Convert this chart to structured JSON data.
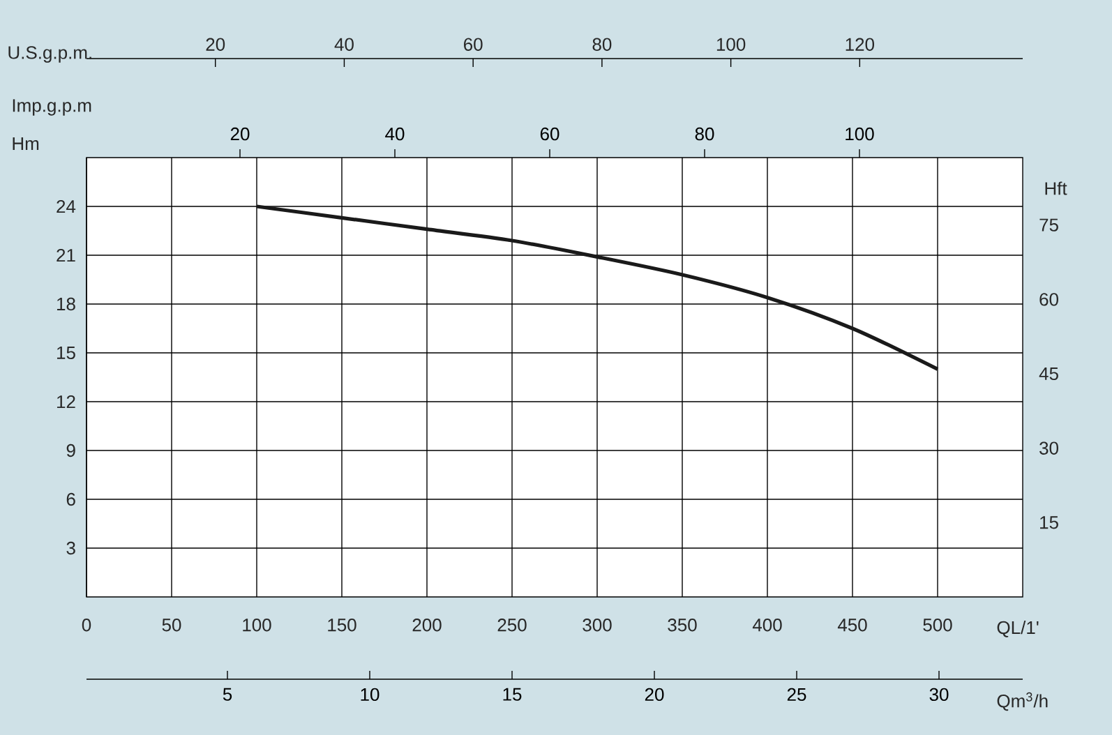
{
  "chart_data": {
    "type": "line",
    "xlabel": "QL/1'",
    "ylabel": "Hm",
    "y2label": "Hft",
    "x2label": "U.S.g.p.m.",
    "annotations": [
      "Imp.g.p.m",
      "20",
      "40",
      "60",
      "80",
      "100",
      "Qm$^{3}$/h",
      "5",
      "10",
      "15",
      "20",
      "25",
      "30"
    ],
    "x": [
      100,
      150,
      200,
      250,
      300,
      350,
      400,
      450,
      500
    ],
    "series": [
      {
        "color": "#1a1a1a",
        "values": [
          24.0,
          23.3,
          22.6,
          21.9,
          20.9,
          19.8,
          18.4,
          16.5,
          14.0
        ]
      }
    ],
    "xlim": [
      0,
      550
    ],
    "xticks": [
      0,
      50,
      100,
      150,
      200,
      250,
      300,
      350,
      400,
      450,
      500
    ],
    "ylim": [
      0,
      27
    ],
    "yticks": [
      3,
      6,
      9,
      12,
      15,
      18,
      21,
      24
    ],
    "y2lim": [
      0,
      88.6
    ],
    "y2ticks": [
      15,
      30,
      45,
      60,
      75
    ],
    "x2lim": [
      0,
      145.3
    ],
    "x2ticks": [
      20,
      40,
      60,
      80,
      100,
      120
    ],
    "grid": true,
    "marker": "none",
    "line_style": "solid"
  }
}
